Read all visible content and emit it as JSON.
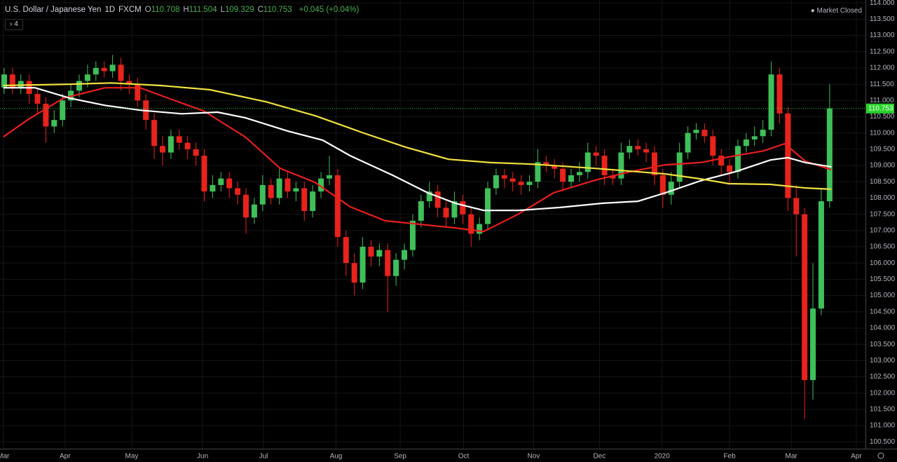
{
  "chart_data": {
    "type": "candlestick",
    "title": "U.S. Dollar / Japanese Yen",
    "interval": "1D",
    "exchange": "FXCM",
    "ohlc": [
      {
        "key": "O",
        "value": 110.708
      },
      {
        "key": "H",
        "value": 111.504
      },
      {
        "key": "L",
        "value": 109.329
      },
      {
        "key": "C",
        "value": 110.753
      }
    ],
    "change": "+0.045 (+0.04%)",
    "status": "Market Closed",
    "indicator_count": "4",
    "up_color": "#3fbf5a",
    "down_color": "#e8231c",
    "last_price_color": "#26d22a",
    "grid": true,
    "xlim": [
      -0.5,
      103.3
    ],
    "ylim": [
      100.29,
      114.09
    ],
    "xticks": [
      {
        "value": -0.1,
        "label": "Mar"
      },
      {
        "value": 7.3,
        "label": "Apr"
      },
      {
        "value": 15.3,
        "label": "May"
      },
      {
        "value": 23.8,
        "label": "Jun"
      },
      {
        "value": 31.1,
        "label": "Jul"
      },
      {
        "value": 39.8,
        "label": "Aug"
      },
      {
        "value": 47.5,
        "label": "Sep"
      },
      {
        "value": 55.1,
        "label": "Oct"
      },
      {
        "value": 63.5,
        "label": "Nov"
      },
      {
        "value": 71.4,
        "label": "Dec"
      },
      {
        "value": 78.9,
        "label": "2020"
      },
      {
        "value": 87.0,
        "label": "Feb"
      },
      {
        "value": 94.4,
        "label": "Mar"
      },
      {
        "value": 102.2,
        "label": "Apr"
      }
    ],
    "yticks": [
      {
        "value": 100.5,
        "label": "100.500"
      },
      {
        "value": 101,
        "label": "101.000"
      },
      {
        "value": 101.5,
        "label": "101.500"
      },
      {
        "value": 102,
        "label": "102.000"
      },
      {
        "value": 102.5,
        "label": "102.500"
      },
      {
        "value": 103,
        "label": "103.000"
      },
      {
        "value": 103.5,
        "label": "103.500"
      },
      {
        "value": 104,
        "label": "104.000"
      },
      {
        "value": 104.5,
        "label": "104.500"
      },
      {
        "value": 105,
        "label": "105.000"
      },
      {
        "value": 105.5,
        "label": "105.500"
      },
      {
        "value": 106,
        "label": "106.000"
      },
      {
        "value": 106.5,
        "label": "106.500"
      },
      {
        "value": 107,
        "label": "107.000"
      },
      {
        "value": 107.5,
        "label": "107.500"
      },
      {
        "value": 108,
        "label": "108.000"
      },
      {
        "value": 108.5,
        "label": "108.500"
      },
      {
        "value": 109,
        "label": "109.000"
      },
      {
        "value": 109.5,
        "label": "109.500"
      },
      {
        "value": 110,
        "label": "110.000"
      },
      {
        "value": 110.5,
        "label": "110.500"
      },
      {
        "value": 111,
        "label": "111.000"
      },
      {
        "value": 111.5,
        "label": "111.500"
      },
      {
        "value": 112,
        "label": "112.000"
      },
      {
        "value": 112.5,
        "label": "112.500"
      },
      {
        "value": 113,
        "label": "113.000"
      },
      {
        "value": 113.5,
        "label": "113.500"
      },
      {
        "value": 114,
        "label": "114.000"
      }
    ],
    "open": [
      111.4,
      111.8,
      111.4,
      111.6,
      111.2,
      110.9,
      110.2,
      110.4,
      111.0,
      111.3,
      111.6,
      111.8,
      112.0,
      111.9,
      112.1,
      111.6,
      111.5,
      111.0,
      110.4,
      109.6,
      109.4,
      109.9,
      109.7,
      109.5,
      109.3,
      108.2,
      108.4,
      108.6,
      108.3,
      108.1,
      107.4,
      107.8,
      108.4,
      108.0,
      108.6,
      108.2,
      108.3,
      107.6,
      108.2,
      108.6,
      108.7,
      106.8,
      106.0,
      105.4,
      106.5,
      106.2,
      106.4,
      105.6,
      106.1,
      106.4,
      107.3,
      107.9,
      108.2,
      107.7,
      107.4,
      107.9,
      107.5,
      106.9,
      107.2,
      108.3,
      108.7,
      108.6,
      108.5,
      108.4,
      108.5,
      109.1,
      109.0,
      108.9,
      108.5,
      108.7,
      108.8,
      109.4,
      109.3,
      108.7,
      108.6,
      109.4,
      109.6,
      109.5,
      109.4,
      108.7,
      108.1,
      108.5,
      109.4,
      110.0,
      110.1,
      109.9,
      109.3,
      109.0,
      108.8,
      109.6,
      109.8,
      109.9,
      110.1,
      111.8,
      110.6,
      108.0,
      107.5,
      102.4,
      104.6,
      107.9
    ],
    "high": [
      112.0,
      112.0,
      111.8,
      111.8,
      111.4,
      111.1,
      110.7,
      111.2,
      111.5,
      111.8,
      112.1,
      112.2,
      112.2,
      112.4,
      112.3,
      111.8,
      111.7,
      111.2,
      110.6,
      109.9,
      110.1,
      110.1,
      109.9,
      109.7,
      109.5,
      108.7,
      108.8,
      108.8,
      108.5,
      108.3,
      108.0,
      108.7,
      108.6,
      108.9,
      108.8,
      108.5,
      108.5,
      108.4,
      108.8,
      109.3,
      108.9,
      107.0,
      106.3,
      106.8,
      106.7,
      106.6,
      106.6,
      106.3,
      106.6,
      107.5,
      108.1,
      108.5,
      108.4,
      107.9,
      108.2,
      108.1,
      107.7,
      107.4,
      108.5,
      108.9,
      108.9,
      108.8,
      108.7,
      108.7,
      109.5,
      109.3,
      109.2,
      109.1,
      108.9,
      109.1,
      109.7,
      109.6,
      109.5,
      108.9,
      109.7,
      109.8,
      109.8,
      109.7,
      109.6,
      108.9,
      108.8,
      109.7,
      110.2,
      110.3,
      110.3,
      110.1,
      109.5,
      109.2,
      109.8,
      110.0,
      110.2,
      110.4,
      112.2,
      112.0,
      110.8,
      108.4,
      107.7,
      106.0,
      108.3,
      111.504
    ],
    "low": [
      111.2,
      111.2,
      111.2,
      110.9,
      110.6,
      109.7,
      110.0,
      110.2,
      110.8,
      111.1,
      111.4,
      111.6,
      111.7,
      111.7,
      111.3,
      111.2,
      110.8,
      110.1,
      109.2,
      109.0,
      109.2,
      109.5,
      109.2,
      109.0,
      107.9,
      108.0,
      108.2,
      108.0,
      107.8,
      106.9,
      107.2,
      107.6,
      107.8,
      107.8,
      108.0,
      107.9,
      107.3,
      107.4,
      108.0,
      108.4,
      106.5,
      105.6,
      105.0,
      105.2,
      105.9,
      105.9,
      104.5,
      105.3,
      105.8,
      106.2,
      107.1,
      107.7,
      107.4,
      107.1,
      107.2,
      107.2,
      106.5,
      106.7,
      107.0,
      108.1,
      108.3,
      108.2,
      108.1,
      108.2,
      108.3,
      108.8,
      108.6,
      108.2,
      108.3,
      108.5,
      108.6,
      109.0,
      108.4,
      108.4,
      108.4,
      109.2,
      109.3,
      109.1,
      108.4,
      107.7,
      107.8,
      108.3,
      109.2,
      109.8,
      109.7,
      109.0,
      108.7,
      108.4,
      108.6,
      109.4,
      109.6,
      109.7,
      109.9,
      110.3,
      107.6,
      106.2,
      101.2,
      101.8,
      104.4,
      107.7
    ],
    "close": [
      111.8,
      111.4,
      111.6,
      111.2,
      110.9,
      110.2,
      110.4,
      111.0,
      111.3,
      111.6,
      111.8,
      112.0,
      111.9,
      112.1,
      111.6,
      111.5,
      111.0,
      110.4,
      109.6,
      109.4,
      109.9,
      109.7,
      109.5,
      109.3,
      108.2,
      108.4,
      108.6,
      108.3,
      108.1,
      107.4,
      107.8,
      108.4,
      108.0,
      108.6,
      108.2,
      108.3,
      107.6,
      108.2,
      108.6,
      108.7,
      106.8,
      106.0,
      105.4,
      106.5,
      106.2,
      106.4,
      105.6,
      106.1,
      106.4,
      107.3,
      107.9,
      108.2,
      107.7,
      107.4,
      107.9,
      107.5,
      106.9,
      107.2,
      108.3,
      108.7,
      108.6,
      108.5,
      108.4,
      108.5,
      109.1,
      109.0,
      108.9,
      108.5,
      108.7,
      108.8,
      109.4,
      109.3,
      108.7,
      108.6,
      109.4,
      109.6,
      109.5,
      109.4,
      108.7,
      108.1,
      108.5,
      109.4,
      110.0,
      110.1,
      109.9,
      109.3,
      109.0,
      108.8,
      109.6,
      109.8,
      109.9,
      110.1,
      111.8,
      110.6,
      108.0,
      107.5,
      102.4,
      104.6,
      107.9,
      110.753
    ],
    "lines": [
      {
        "color": "#e81e1e",
        "x": [
          -0.1,
          2.9,
          7.1,
          12.1,
          16.3,
          19.7,
          23.9,
          28.9,
          33.1,
          37.3,
          41.5,
          45.7,
          49.9,
          54.1,
          57.5,
          61.7,
          65.9,
          70.9,
          75.1,
          79.3,
          83.5,
          87.7,
          91.1,
          93.6,
          96.1,
          99.2
        ],
        "values": [
          109.88,
          110.42,
          111.07,
          111.39,
          111.39,
          111.07,
          110.68,
          109.88,
          108.91,
          108.48,
          107.73,
          107.3,
          107.19,
          107.08,
          106.97,
          107.51,
          108.16,
          108.55,
          108.81,
          109.02,
          109.09,
          109.3,
          109.45,
          109.67,
          109.13,
          108.87
        ]
      },
      {
        "color": "#ffffff",
        "x": [
          -0.1,
          3.7,
          7.9,
          12.1,
          16.3,
          21.3,
          25.6,
          28.9,
          34.0,
          38.2,
          41.5,
          46.6,
          50.8,
          54.1,
          57.5,
          61.7,
          66.7,
          71.8,
          76.0,
          79.3,
          83.5,
          87.7,
          91.9,
          94.0,
          96.1,
          99.2
        ],
        "values": [
          111.39,
          111.39,
          111.07,
          110.85,
          110.7,
          110.59,
          110.64,
          110.47,
          110.06,
          109.78,
          109.3,
          108.7,
          108.16,
          107.84,
          107.62,
          107.62,
          107.71,
          107.84,
          107.9,
          108.16,
          108.53,
          108.81,
          109.17,
          109.24,
          109.09,
          108.96
        ]
      },
      {
        "color": "#f0e040",
        "x": [
          -0.1,
          7.9,
          12.9,
          18.8,
          24.7,
          31.4,
          37.3,
          43.2,
          48.2,
          53.3,
          58.3,
          63.4,
          70.9,
          79.3,
          83.5,
          86.9,
          91.9,
          96.1,
          99.2
        ],
        "values": [
          111.46,
          111.5,
          111.54,
          111.46,
          111.33,
          110.96,
          110.53,
          109.99,
          109.56,
          109.19,
          109.09,
          109.04,
          108.91,
          108.74,
          108.59,
          108.44,
          108.42,
          108.31,
          108.27
        ]
      }
    ]
  }
}
